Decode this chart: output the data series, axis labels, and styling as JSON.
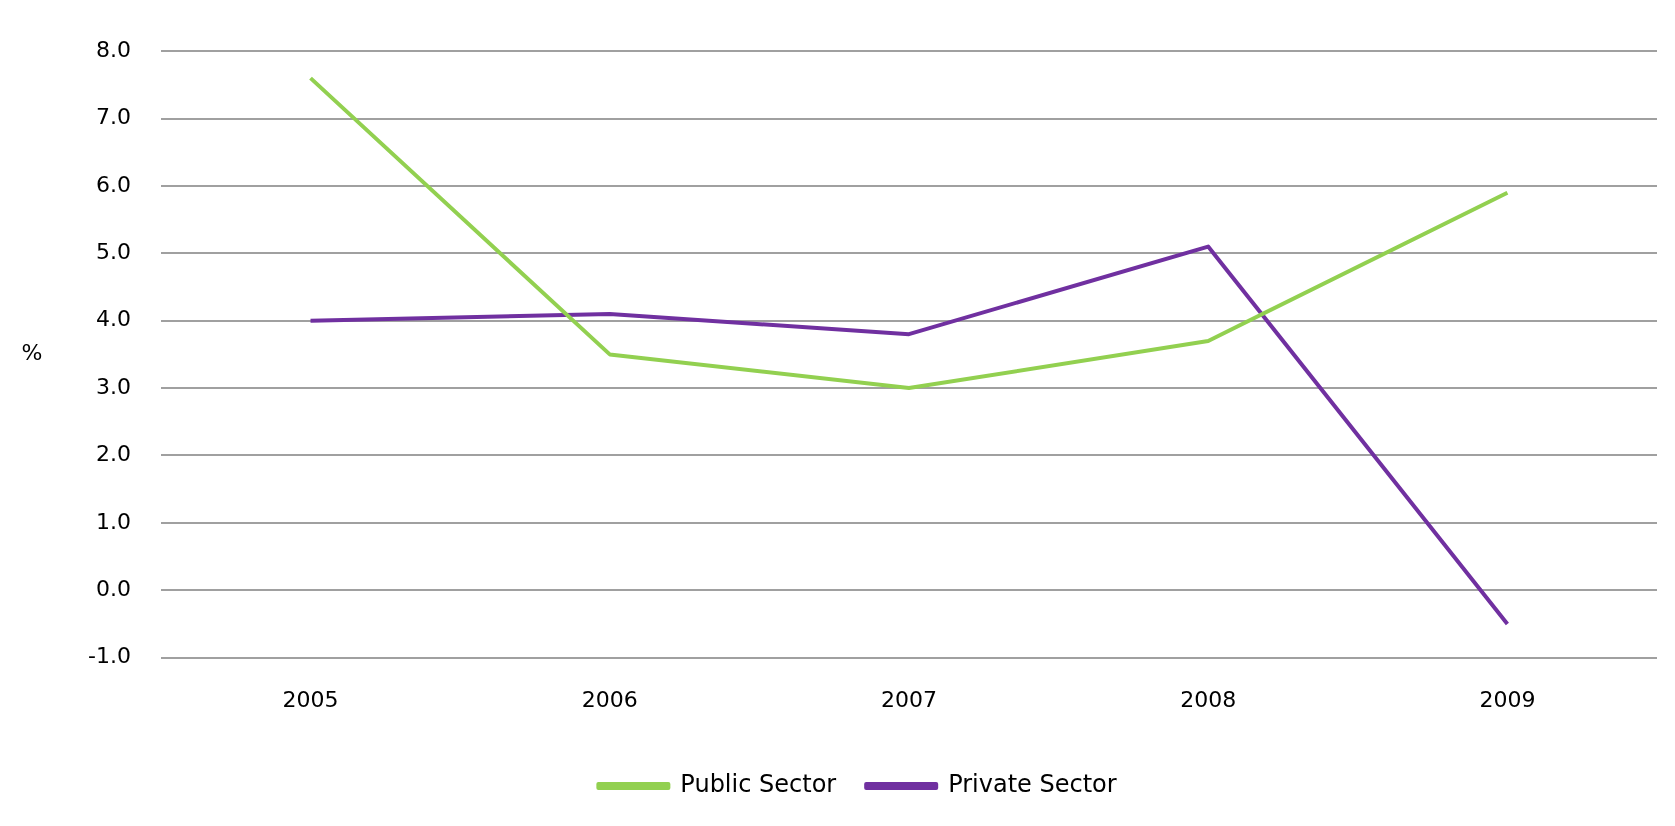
{
  "chart_data": {
    "type": "line",
    "ylabel": "%",
    "categories": [
      "2005",
      "2006",
      "2007",
      "2008",
      "2009"
    ],
    "series": [
      {
        "name": "Public Sector",
        "color": "#92d050",
        "values": [
          7.6,
          3.5,
          3.0,
          3.7,
          5.9
        ]
      },
      {
        "name": "Private Sector",
        "color": "#7030a0",
        "values": [
          4.0,
          4.1,
          3.8,
          5.1,
          -0.5
        ]
      }
    ],
    "ylim": [
      -1,
      8
    ],
    "yticks": [
      {
        "value": -1,
        "label": "-1.0"
      },
      {
        "value": 0,
        "label": "0.0"
      },
      {
        "value": 1,
        "label": "1.0"
      },
      {
        "value": 2,
        "label": "2.0"
      },
      {
        "value": 3,
        "label": "3.0"
      },
      {
        "value": 4,
        "label": "4.0"
      },
      {
        "value": 5,
        "label": "5.0"
      },
      {
        "value": 6,
        "label": "6.0"
      },
      {
        "value": 7,
        "label": "7.0"
      },
      {
        "value": 8,
        "label": "8.0"
      }
    ],
    "grid": "y",
    "legend": "bottom"
  }
}
